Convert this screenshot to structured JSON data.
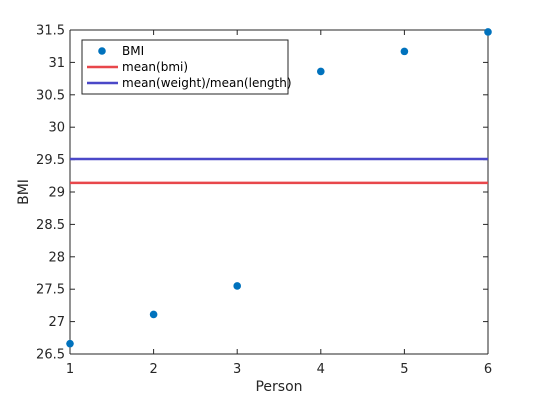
{
  "chart_data": {
    "type": "scatter",
    "xlabel": "Person",
    "ylabel": "BMI",
    "xlim": [
      1,
      6
    ],
    "ylim": [
      26.5,
      31.5
    ],
    "xticks": [
      1,
      2,
      3,
      4,
      5,
      6
    ],
    "yticks": [
      26.5,
      27,
      27.5,
      28,
      28.5,
      29,
      29.5,
      30,
      30.5,
      31,
      31.5
    ],
    "grid": false,
    "legend_location": "top-left",
    "series": [
      {
        "name": "BMI",
        "kind": "scatter",
        "color": "#0072BD",
        "x": [
          1,
          2,
          3,
          4,
          5,
          6
        ],
        "y": [
          26.66,
          27.11,
          27.55,
          30.86,
          31.17,
          31.47
        ]
      },
      {
        "name": "mean(bmi)",
        "kind": "hline",
        "color": "#E8474B",
        "y": 29.14
      },
      {
        "name": "mean(weight)/mean(length)",
        "kind": "hline",
        "color": "#4B48C8",
        "y": 29.51
      }
    ]
  }
}
